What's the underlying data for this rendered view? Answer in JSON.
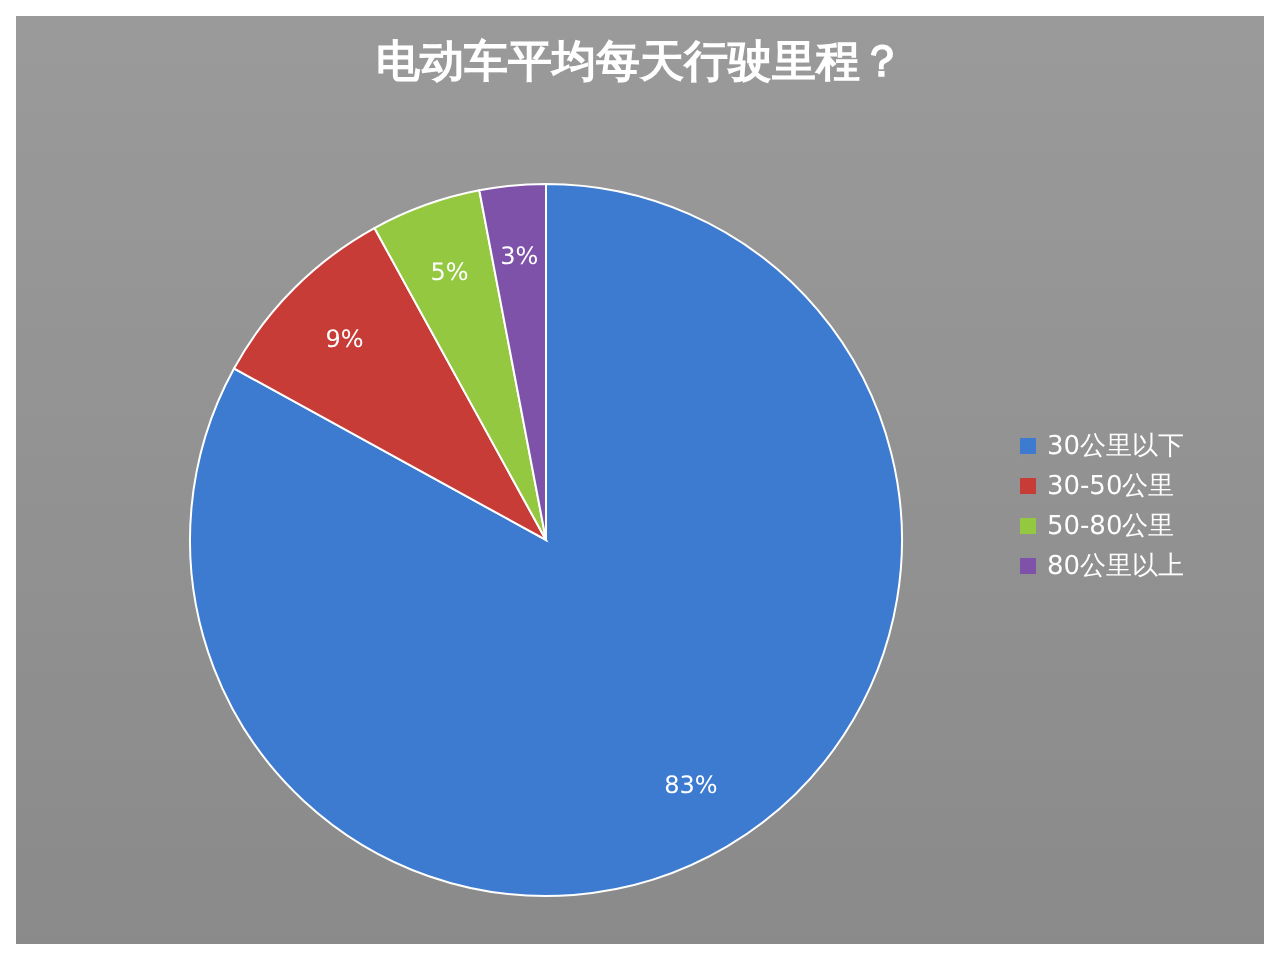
{
  "chart_data": {
    "type": "pie",
    "title": "电动车平均每天行驶里程？",
    "categories": [
      "30公里以下",
      "30-50公里",
      "50-80公里",
      "80公里以上"
    ],
    "values": [
      83,
      9,
      5,
      3
    ],
    "colors": [
      "#3d7bd0",
      "#c83c38",
      "#94c840",
      "#7e52a8"
    ],
    "value_labels": [
      "83%",
      "9%",
      "5%",
      "3%"
    ],
    "legend": "right"
  }
}
